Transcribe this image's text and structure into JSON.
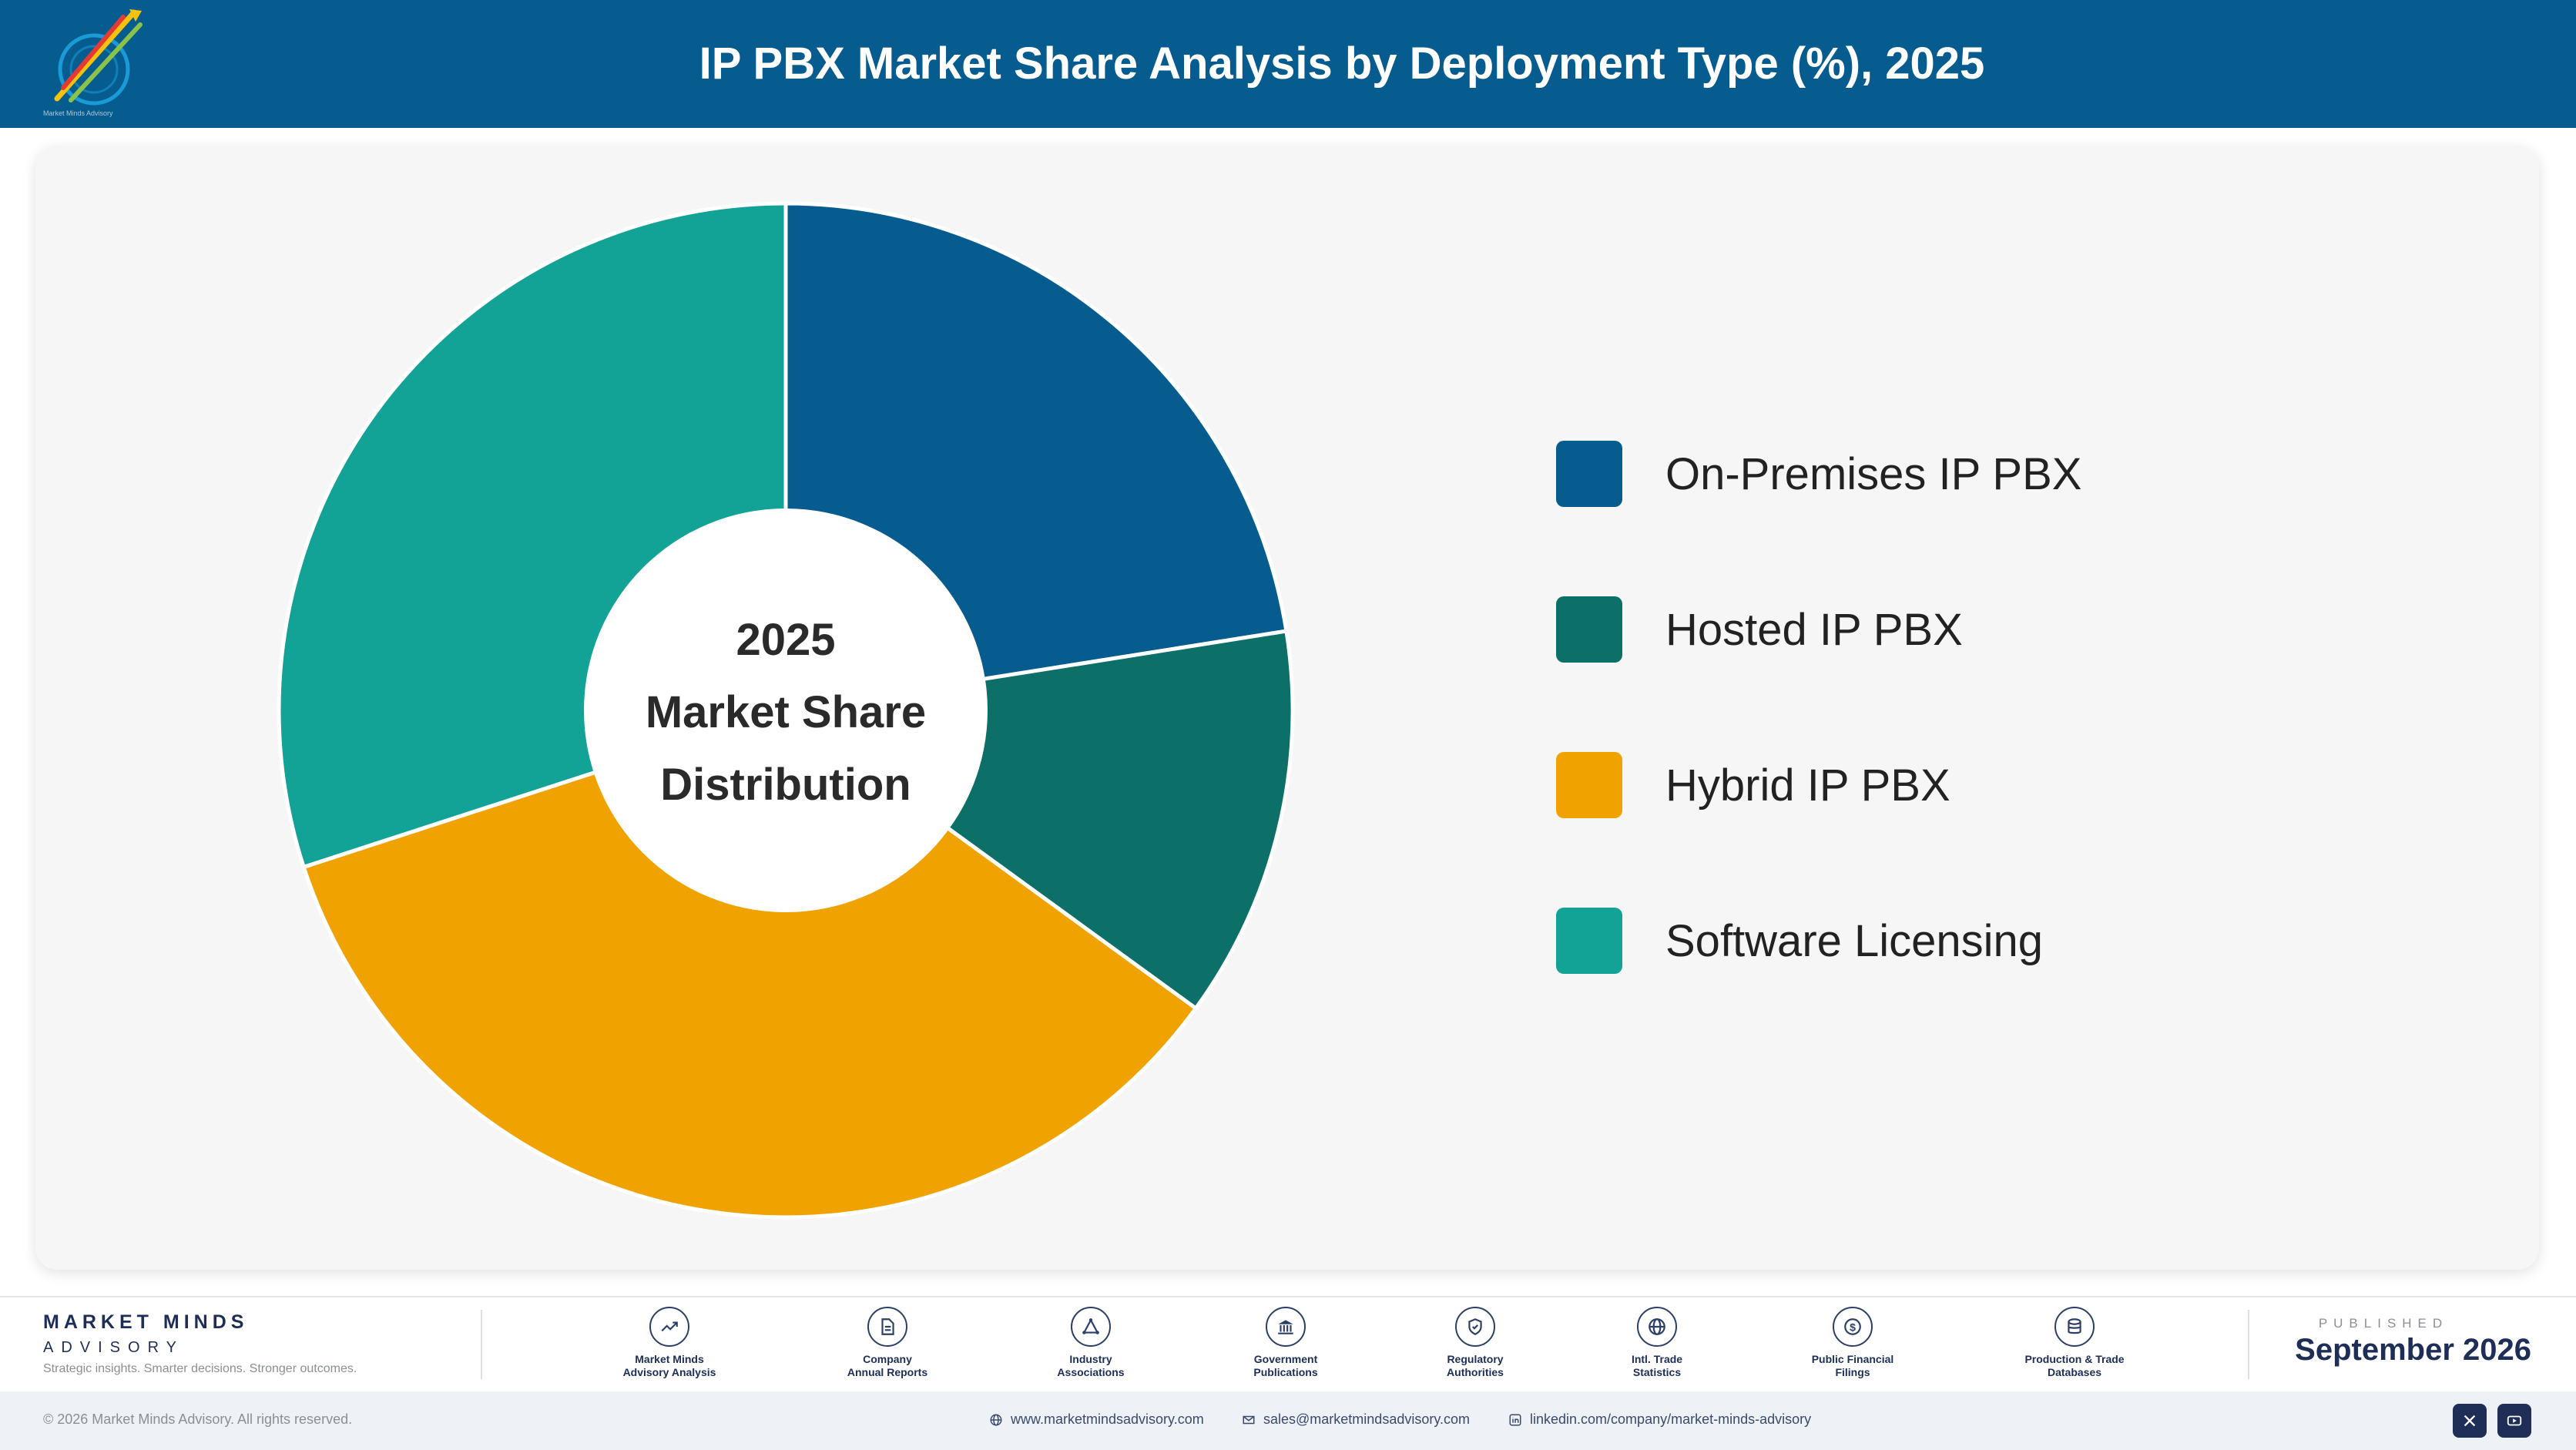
{
  "header": {
    "title": "IP PBX Market Share Analysis by Deployment Type (%), 2025",
    "logo_text": "Market Minds Advisory"
  },
  "chart_data": {
    "type": "pie",
    "title": "IP PBX Market Share Analysis by Deployment Type (%), 2025",
    "center_label": [
      "2025",
      "Market Share",
      "Distribution"
    ],
    "legend_position": "right",
    "categories": [
      "On-Premises IP PBX",
      "Hosted IP PBX",
      "Hybrid IP PBX",
      "Software Licensing"
    ],
    "values": [
      22.5,
      12.5,
      35,
      30
    ],
    "colors": [
      "#075c8f",
      "#0c7068",
      "#f0a300",
      "#13a396"
    ]
  },
  "footer": {
    "brand_line1": "MARKET MINDS",
    "brand_line2": "ADVISORY",
    "tagline": "Strategic insights. Smarter decisions. Stronger outcomes.",
    "sources": [
      {
        "label": "Market Minds\nAdvisory Analysis",
        "icon": "trend-icon"
      },
      {
        "label": "Company\nAnnual Reports",
        "icon": "document-icon"
      },
      {
        "label": "Industry\nAssociations",
        "icon": "network-icon"
      },
      {
        "label": "Government\nPublications",
        "icon": "government-building-icon"
      },
      {
        "label": "Regulatory\nAuthorities",
        "icon": "shield-check-icon"
      },
      {
        "label": "Intl. Trade\nStatistics",
        "icon": "globe-icon"
      },
      {
        "label": "Public Financial\nFilings",
        "icon": "dollar-coin-icon"
      },
      {
        "label": "Production & Trade\nDatabases",
        "icon": "database-icon"
      }
    ],
    "published_label": "PUBLISHED",
    "published_date": "September 2026"
  },
  "bottom_bar": {
    "copyright": "© 2026 Market Minds Advisory. All rights reserved.",
    "website": "www.marketmindsadvisory.com",
    "email": "sales@marketmindsadvisory.com",
    "linkedin": "linkedin.com/company/market-minds-advisory"
  }
}
